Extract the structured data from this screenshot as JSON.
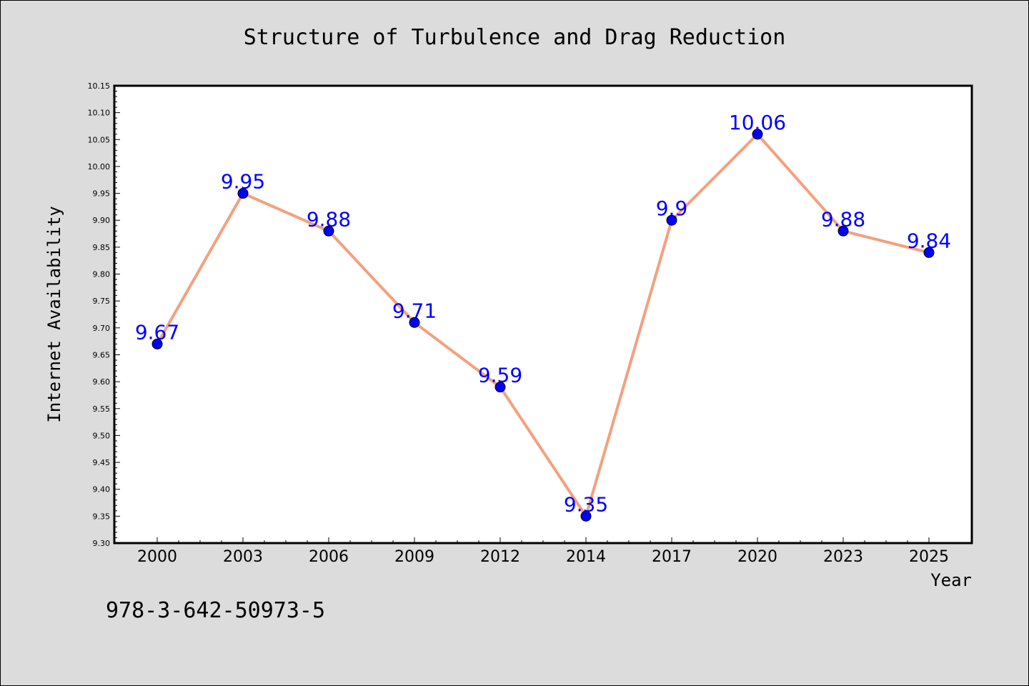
{
  "chart_data": {
    "type": "line",
    "title": "Structure of Turbulence and Drag Reduction",
    "xlabel": "Year",
    "ylabel": "Internet Availability",
    "categories": [
      "2000",
      "2003",
      "2006",
      "2009",
      "2012",
      "2014",
      "2017",
      "2020",
      "2023",
      "2025"
    ],
    "values": [
      9.67,
      9.95,
      9.88,
      9.71,
      9.59,
      9.35,
      9.9,
      10.06,
      9.88,
      9.84
    ],
    "data_labels": [
      "9.67",
      "9.95",
      "9.88",
      "9.71",
      "9.59",
      "9.35",
      "9.9",
      "10.06",
      "9.88",
      "9.84"
    ],
    "ylim": [
      9.3,
      10.15
    ],
    "yticks": [
      "9.30",
      "9.35",
      "9.40",
      "9.45",
      "9.50",
      "9.55",
      "9.60",
      "9.65",
      "9.70",
      "9.75",
      "9.80",
      "9.85",
      "9.90",
      "9.95",
      "10.00",
      "10.05",
      "10.10",
      "10.15"
    ],
    "grid": false,
    "line_color": "#f4a07e",
    "marker_color": "#0000ff",
    "label_color": "#0000ff",
    "footnote": "978-3-642-50973-5"
  }
}
